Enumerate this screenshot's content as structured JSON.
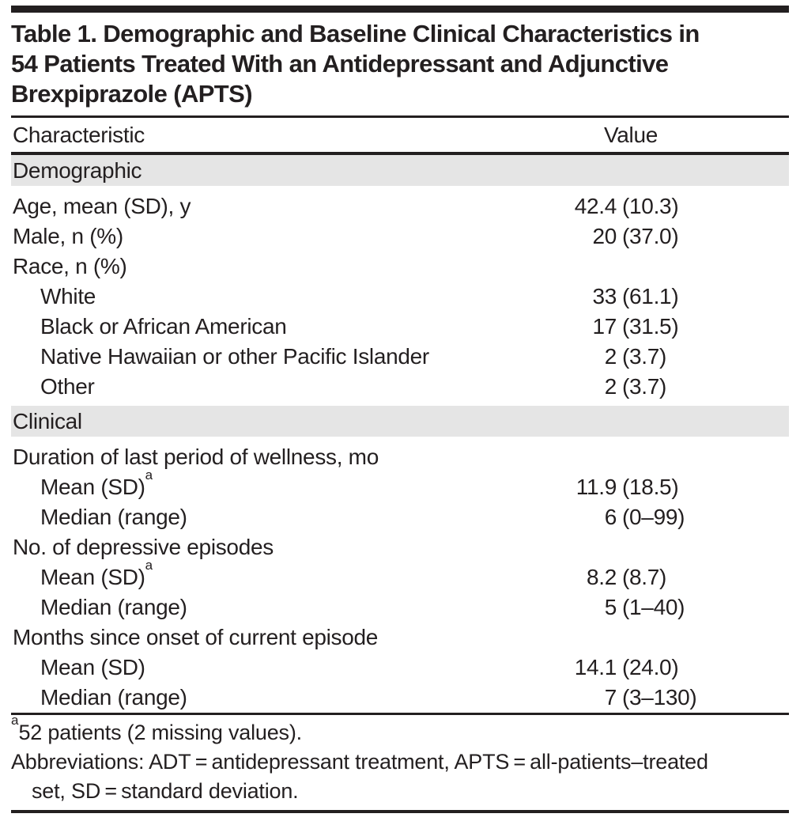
{
  "colors": {
    "text": "#231f20",
    "section_band": "#e5e5e5",
    "rule": "#231f20"
  },
  "table": {
    "title_lines": [
      "Table 1. Demographic and Baseline Clinical Characteristics in",
      "54 Patients Treated With an Antidepressant and Adjunctive",
      "Brexpiprazole (APTS)"
    ],
    "columns": [
      "Characteristic",
      "Value"
    ],
    "sections": [
      {
        "header": "Demographic",
        "rows": [
          {
            "label": "Age, mean (SD), y",
            "sup": "",
            "value": "42.4 (10.3)",
            "indent": 0
          },
          {
            "label": "Male, n (%)",
            "sup": "",
            "value": "20 (37.0)",
            "indent": 0
          },
          {
            "label": "Race, n (%)",
            "sup": "",
            "value": "",
            "indent": 0
          },
          {
            "label": "White",
            "sup": "",
            "value": "33 (61.1)",
            "indent": 1
          },
          {
            "label": "Black or African American",
            "sup": "",
            "value": "17 (31.5)",
            "indent": 1
          },
          {
            "label": "Native Hawaiian or other Pacific Islander",
            "sup": "",
            "value": "2 (3.7)",
            "indent": 1
          },
          {
            "label": "Other",
            "sup": "",
            "value": "2 (3.7)",
            "indent": 1
          }
        ]
      },
      {
        "header": "Clinical",
        "rows": [
          {
            "label": "Duration of last period of wellness, mo",
            "sup": "",
            "value": "",
            "indent": 0
          },
          {
            "label": "Mean (SD)",
            "sup": "a",
            "value": "11.9 (18.5)",
            "indent": 1
          },
          {
            "label": "Median (range)",
            "sup": "",
            "value": "6 (0–99)",
            "indent": 1
          },
          {
            "label": "No. of depressive episodes",
            "sup": "",
            "value": "",
            "indent": 0
          },
          {
            "label": "Mean (SD)",
            "sup": "a",
            "value": "8.2 (8.7)",
            "indent": 1
          },
          {
            "label": "Median (range)",
            "sup": "",
            "value": "5 (1–40)",
            "indent": 1
          },
          {
            "label": "Months since onset of current episode",
            "sup": "",
            "value": "",
            "indent": 0
          },
          {
            "label": "Mean (SD)",
            "sup": "",
            "value": "14.1 (24.0)",
            "indent": 1
          },
          {
            "label": "Median (range)",
            "sup": "",
            "value": "7 (3–130)",
            "indent": 1
          }
        ]
      }
    ],
    "footnotes": [
      {
        "sup": "a",
        "lines": [
          "52 patients (2 missing values)."
        ]
      },
      {
        "sup": "",
        "lines": [
          "Abbreviations: ADT = antidepressant treatment, APTS = all-patients–treated",
          "set, SD = standard deviation."
        ]
      }
    ]
  }
}
